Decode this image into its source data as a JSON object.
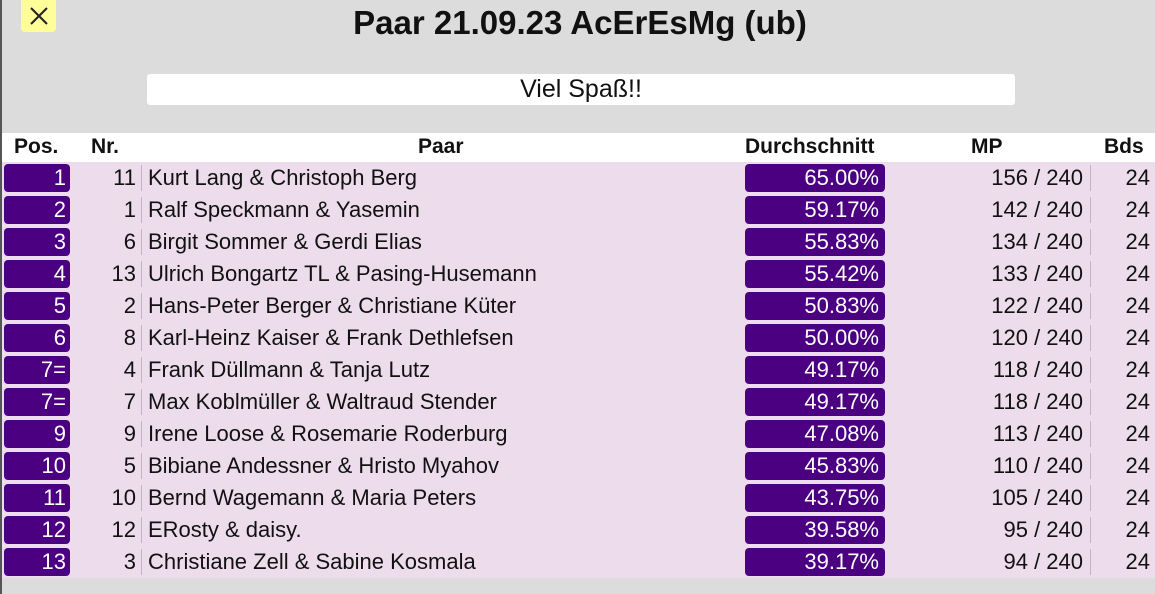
{
  "window": {
    "close_symbol": "✕"
  },
  "title": "Paar 21.09.23 AcErEsMg (ub)",
  "message": "Viel Spaß!!",
  "columns": {
    "pos": "Pos.",
    "nr": "Nr.",
    "paar": "Paar",
    "avg": "Durchschnitt",
    "mp": "MP",
    "bds": "Bds"
  },
  "colors": {
    "accent": "#4b0082",
    "row_bg": "#ecdcec",
    "close_bg": "#ffff99",
    "page_bg": "#dcdcdc"
  },
  "rows": [
    {
      "pos": "1",
      "nr": "11",
      "paar": "Kurt Lang & Christoph Berg",
      "avg": "65.00%",
      "mp": "156 / 240",
      "bds": "24"
    },
    {
      "pos": "2",
      "nr": "1",
      "paar": "Ralf Speckmann & Yasemin",
      "avg": "59.17%",
      "mp": "142 / 240",
      "bds": "24"
    },
    {
      "pos": "3",
      "nr": "6",
      "paar": "Birgit Sommer & Gerdi Elias",
      "avg": "55.83%",
      "mp": "134 / 240",
      "bds": "24"
    },
    {
      "pos": "4",
      "nr": "13",
      "paar": "Ulrich Bongartz TL & Pasing-Husemann",
      "avg": "55.42%",
      "mp": "133 / 240",
      "bds": "24"
    },
    {
      "pos": "5",
      "nr": "2",
      "paar": "Hans-Peter Berger & Christiane Küter",
      "avg": "50.83%",
      "mp": "122 / 240",
      "bds": "24"
    },
    {
      "pos": "6",
      "nr": "8",
      "paar": "Karl-Heinz Kaiser & Frank Dethlefsen",
      "avg": "50.00%",
      "mp": "120 / 240",
      "bds": "24"
    },
    {
      "pos": "7=",
      "nr": "4",
      "paar": "Frank Düllmann & Tanja Lutz",
      "avg": "49.17%",
      "mp": "118 / 240",
      "bds": "24"
    },
    {
      "pos": "7=",
      "nr": "7",
      "paar": "Max Koblmüller & Waltraud Stender",
      "avg": "49.17%",
      "mp": "118 / 240",
      "bds": "24"
    },
    {
      "pos": "9",
      "nr": "9",
      "paar": "Irene Loose & Rosemarie Roderburg",
      "avg": "47.08%",
      "mp": "113 / 240",
      "bds": "24"
    },
    {
      "pos": "10",
      "nr": "5",
      "paar": "Bibiane Andessner & Hristo Myahov",
      "avg": "45.83%",
      "mp": "110 / 240",
      "bds": "24"
    },
    {
      "pos": "11",
      "nr": "10",
      "paar": "Bernd Wagemann & Maria Peters",
      "avg": "43.75%",
      "mp": "105 / 240",
      "bds": "24"
    },
    {
      "pos": "12",
      "nr": "12",
      "paar": "ERosty & daisy.",
      "avg": "39.58%",
      "mp": "95 / 240",
      "bds": "24"
    },
    {
      "pos": "13",
      "nr": "3",
      "paar": "Christiane Zell & Sabine Kosmala",
      "avg": "39.17%",
      "mp": "94 / 240",
      "bds": "24"
    }
  ]
}
